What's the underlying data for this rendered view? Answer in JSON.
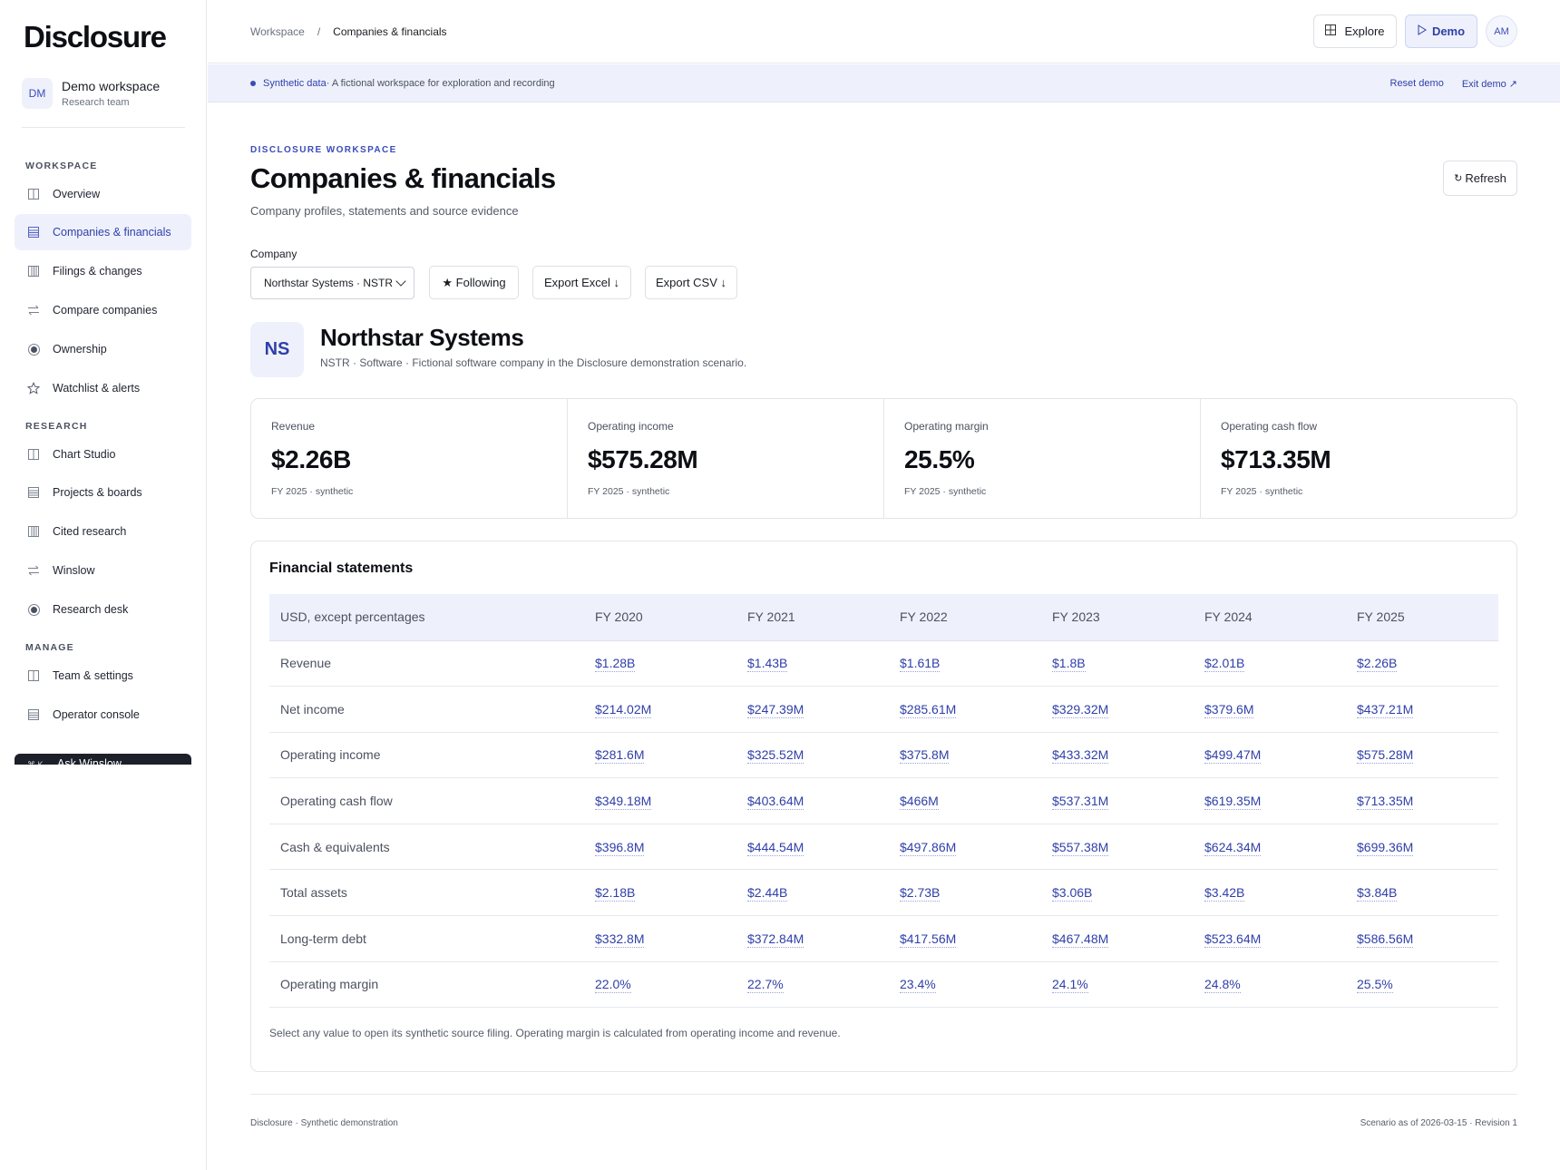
{
  "app": {
    "logo": "Disclosure"
  },
  "workspace": {
    "avatar": "DM",
    "name": "Demo workspace",
    "team": "Research team"
  },
  "sidebar": {
    "sections": [
      "WORKSPACE",
      "RESEARCH",
      "MANAGE"
    ],
    "items": [
      {
        "label": "Overview",
        "icon": "grid-icon"
      },
      {
        "label": "Companies & financials",
        "icon": "table-icon"
      },
      {
        "label": "Filings & changes",
        "icon": "columns-icon"
      },
      {
        "label": "Compare companies",
        "icon": "swap-arrows-icon"
      },
      {
        "label": "Ownership",
        "icon": "radio-circle-icon"
      },
      {
        "label": "Watchlist & alerts",
        "icon": "star-icon"
      },
      {
        "label": "Chart Studio",
        "icon": "grid-icon"
      },
      {
        "label": "Projects & boards",
        "icon": "table-icon"
      },
      {
        "label": "Cited research",
        "icon": "columns-icon"
      },
      {
        "label": "Winslow",
        "icon": "swap-arrows-icon"
      },
      {
        "label": "Research desk",
        "icon": "radio-circle-icon"
      },
      {
        "label": "Team & settings",
        "icon": "grid-icon"
      },
      {
        "label": "Operator console",
        "icon": "table-icon"
      }
    ],
    "ask": {
      "kbd": "⌘ K",
      "label": "Ask Winslow"
    }
  },
  "topbar": {
    "breadcrumb": {
      "root": "Workspace",
      "sep": "/",
      "current": "Companies & financials"
    },
    "explore": "Explore",
    "demo": "Demo",
    "user_avatar": "AM"
  },
  "banner": {
    "strong": "Synthetic data",
    "text": " · A fictional workspace for exploration and recording",
    "reset": "Reset demo",
    "exit": "Exit demo ↗"
  },
  "page": {
    "eyebrow": "DISCLOSURE WORKSPACE",
    "title": "Companies & financials",
    "subtitle": "Company profiles, statements and source evidence",
    "refresh": "Refresh"
  },
  "controls": {
    "company_label": "Company",
    "company_value": "Northstar Systems · NSTR",
    "following": "★ Following",
    "export_excel": "Export Excel ↓",
    "export_csv": "Export CSV ↓"
  },
  "company": {
    "initials": "NS",
    "name": "Northstar Systems",
    "meta": "NSTR · Software · Fictional software company in the Disclosure demonstration scenario."
  },
  "kpis": [
    {
      "label": "Revenue",
      "value": "$2.26B",
      "note": "FY 2025 · synthetic"
    },
    {
      "label": "Operating income",
      "value": "$575.28M",
      "note": "FY 2025 · synthetic"
    },
    {
      "label": "Operating margin",
      "value": "25.5%",
      "note": "FY 2025 · synthetic"
    },
    {
      "label": "Operating cash flow",
      "value": "$713.35M",
      "note": "FY 2025 · synthetic"
    }
  ],
  "statements": {
    "title": "Financial statements",
    "columns": [
      "USD, except percentages",
      "FY 2020",
      "FY 2021",
      "FY 2022",
      "FY 2023",
      "FY 2024",
      "FY 2025"
    ],
    "rows": [
      {
        "label": "Revenue",
        "values": [
          "$1.28B",
          "$1.43B",
          "$1.61B",
          "$1.8B",
          "$2.01B",
          "$2.26B"
        ]
      },
      {
        "label": "Net income",
        "values": [
          "$214.02M",
          "$247.39M",
          "$285.61M",
          "$329.32M",
          "$379.6M",
          "$437.21M"
        ]
      },
      {
        "label": "Operating income",
        "values": [
          "$281.6M",
          "$325.52M",
          "$375.8M",
          "$433.32M",
          "$499.47M",
          "$575.28M"
        ]
      },
      {
        "label": "Operating cash flow",
        "values": [
          "$349.18M",
          "$403.64M",
          "$466M",
          "$537.31M",
          "$619.35M",
          "$713.35M"
        ]
      },
      {
        "label": "Cash & equivalents",
        "values": [
          "$396.8M",
          "$444.54M",
          "$497.86M",
          "$557.38M",
          "$624.34M",
          "$699.36M"
        ]
      },
      {
        "label": "Total assets",
        "values": [
          "$2.18B",
          "$2.44B",
          "$2.73B",
          "$3.06B",
          "$3.42B",
          "$3.84B"
        ]
      },
      {
        "label": "Long-term debt",
        "values": [
          "$332.8M",
          "$372.84M",
          "$417.56M",
          "$467.48M",
          "$523.64M",
          "$586.56M"
        ]
      },
      {
        "label": "Operating margin",
        "values": [
          "22.0%",
          "22.7%",
          "23.4%",
          "24.1%",
          "24.8%",
          "25.5%"
        ]
      }
    ],
    "note": "Select any value to open its synthetic source filing. Operating margin is calculated from operating income and revenue."
  },
  "footer": {
    "left": "Disclosure · Synthetic demonstration",
    "right": "Scenario as of 2026-03-15 · Revision 1"
  },
  "colors": {
    "accent": "#2f3fa8",
    "accent_bg": "#eef1fc",
    "text": "#1a1d23"
  }
}
